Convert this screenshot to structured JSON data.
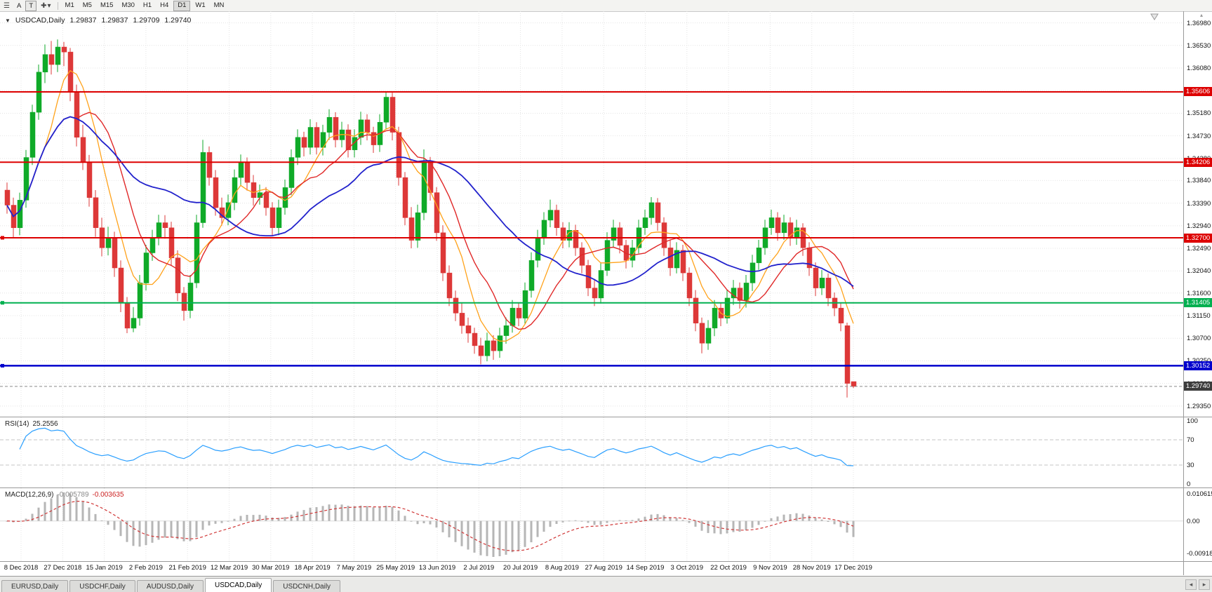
{
  "icons": {
    "charts_menu": "☰",
    "crosshair": "✚",
    "dropdown": "▾",
    "symbol_dropdown": "▼",
    "tab_scroll_left": "◂",
    "tab_scroll_right": "▸",
    "scroll_up": "▴"
  },
  "toolbar": {
    "tool_a_label": "A",
    "tool_t_label": "T",
    "timeframes": [
      "M1",
      "M5",
      "M15",
      "M30",
      "H1",
      "H4",
      "D1",
      "W1",
      "MN"
    ],
    "active_timeframe": "D1"
  },
  "header": {
    "symbol_title": "USDCAD,Daily",
    "open": "1.29837",
    "high": "1.29837",
    "low": "1.29709",
    "close": "1.29740"
  },
  "tabs": {
    "items": [
      "EURUSD,Daily",
      "USDCHF,Daily",
      "AUDUSD,Daily",
      "USDCAD,Daily",
      "USDCNH,Daily"
    ],
    "active": "USDCAD,Daily"
  },
  "chart_data": {
    "type": "candlestick",
    "symbol": "USDCAD",
    "timeframe": "Daily",
    "candle_colors": {
      "up": "#0faa28",
      "down": "#dd3838"
    },
    "price_axis": {
      "min": 1.2925,
      "max": 1.371,
      "labels": [
        "1.36980",
        "1.36530",
        "1.36080",
        "1.35630",
        "1.35180",
        "1.34730",
        "1.34280",
        "1.33840",
        "1.33390",
        "1.32940",
        "1.32490",
        "1.32040",
        "1.31600",
        "1.31150",
        "1.30700",
        "1.30250",
        "1.29800",
        "1.29350"
      ]
    },
    "date_labels": [
      "8 Dec 2018",
      "27 Dec 2018",
      "15 Jan 2019",
      "2 Feb 2019",
      "21 Feb 2019",
      "12 Mar 2019",
      "30 Mar 2019",
      "18 Apr 2019",
      "7 May 2019",
      "25 May 2019",
      "13 Jun 2019",
      "2 Jul 2019",
      "20 Jul 2019",
      "8 Aug 2019",
      "27 Aug 2019",
      "14 Sep 2019",
      "3 Oct 2019",
      "22 Oct 2019",
      "9 Nov 2019",
      "28 Nov 2019",
      "17 Dec 2019"
    ],
    "horizontal_lines": [
      {
        "price": 1.35606,
        "label": "1.35606",
        "color": "#dd0000",
        "thickness": 2,
        "left_handle": false
      },
      {
        "price": 1.34206,
        "label": "1.34206",
        "color": "#dd0000",
        "thickness": 2,
        "left_handle": false
      },
      {
        "price": 1.327,
        "label": "1.32700",
        "color": "#dd0000",
        "thickness": 2,
        "left_handle": true
      },
      {
        "price": 1.31405,
        "label": "1.31405",
        "color": "#00b050",
        "thickness": 2,
        "left_handle": true
      },
      {
        "price": 1.30152,
        "label": "1.30152",
        "color": "#0000cc",
        "thickness": 2.5,
        "left_handle": true
      }
    ],
    "current_price": {
      "value": 1.2974,
      "label": "1.29740",
      "tag_color": "#3c3c3c"
    },
    "moving_averages": [
      {
        "period": 7,
        "color": "#ffa21a",
        "width": 1.3
      },
      {
        "period": 12,
        "color": "#e02828",
        "width": 1.4
      },
      {
        "period": 28,
        "color": "#2222cc",
        "width": 1.8
      }
    ],
    "rsi": {
      "name": "RSI(14)",
      "current_value": "25.2556",
      "period": 14,
      "axis_labels": [
        100,
        70,
        30,
        0
      ],
      "levels": [
        70,
        30
      ],
      "line_color": "#2a9fff"
    },
    "macd": {
      "name": "MACD(12,26,9)",
      "main_value": "-0.005789",
      "signal_value": "-0.003635",
      "fast": 12,
      "slow": 26,
      "signal": 9,
      "axis_labels": [
        "0.010615",
        "0.00",
        "-0.009181"
      ],
      "histogram_color": "#b6b6b6",
      "signal_color": "#d03838"
    },
    "candles": [
      [
        1.3365,
        1.338,
        1.3318,
        1.3335
      ],
      [
        1.3335,
        1.335,
        1.327,
        1.329
      ],
      [
        1.329,
        1.336,
        1.3275,
        1.3345
      ],
      [
        1.3345,
        1.3445,
        1.333,
        1.343
      ],
      [
        1.343,
        1.3535,
        1.3415,
        1.352
      ],
      [
        1.352,
        1.3615,
        1.3505,
        1.36
      ],
      [
        1.36,
        1.3655,
        1.3578,
        1.3635
      ],
      [
        1.3635,
        1.3662,
        1.3595,
        1.3615
      ],
      [
        1.3615,
        1.3665,
        1.36,
        1.365
      ],
      [
        1.365,
        1.366,
        1.3612,
        1.364
      ],
      [
        1.364,
        1.3648,
        1.3542,
        1.356
      ],
      [
        1.356,
        1.3575,
        1.3452,
        1.347
      ],
      [
        1.347,
        1.3495,
        1.3405,
        1.342
      ],
      [
        1.342,
        1.3435,
        1.3332,
        1.335
      ],
      [
        1.335,
        1.3365,
        1.3272,
        1.329
      ],
      [
        1.329,
        1.331,
        1.3233,
        1.325
      ],
      [
        1.325,
        1.3292,
        1.3235,
        1.327
      ],
      [
        1.327,
        1.3282,
        1.3192,
        1.321
      ],
      [
        1.321,
        1.3225,
        1.3122,
        1.314
      ],
      [
        1.314,
        1.3152,
        1.308,
        1.309
      ],
      [
        1.309,
        1.3132,
        1.3082,
        1.311
      ],
      [
        1.311,
        1.3196,
        1.3095,
        1.318
      ],
      [
        1.318,
        1.3256,
        1.3165,
        1.324
      ],
      [
        1.324,
        1.3286,
        1.3224,
        1.327
      ],
      [
        1.327,
        1.3316,
        1.3255,
        1.33
      ],
      [
        1.33,
        1.3315,
        1.3268,
        1.329
      ],
      [
        1.329,
        1.3302,
        1.3214,
        1.323
      ],
      [
        1.323,
        1.3245,
        1.3144,
        1.316
      ],
      [
        1.316,
        1.3172,
        1.3105,
        1.3125
      ],
      [
        1.3125,
        1.3196,
        1.311,
        1.318
      ],
      [
        1.318,
        1.3316,
        1.317,
        1.33
      ],
      [
        1.33,
        1.3465,
        1.329,
        1.344
      ],
      [
        1.344,
        1.3452,
        1.3374,
        1.339
      ],
      [
        1.339,
        1.3405,
        1.3314,
        1.333
      ],
      [
        1.333,
        1.335,
        1.3294,
        1.331
      ],
      [
        1.331,
        1.3356,
        1.3295,
        1.334
      ],
      [
        1.334,
        1.3406,
        1.3325,
        1.339
      ],
      [
        1.339,
        1.3436,
        1.3374,
        1.342
      ],
      [
        1.342,
        1.343,
        1.3364,
        1.338
      ],
      [
        1.338,
        1.3395,
        1.3334,
        1.335
      ],
      [
        1.335,
        1.3376,
        1.3336,
        1.336
      ],
      [
        1.336,
        1.3371,
        1.3314,
        1.333
      ],
      [
        1.333,
        1.3341,
        1.3274,
        1.329
      ],
      [
        1.329,
        1.3346,
        1.3275,
        1.333
      ],
      [
        1.333,
        1.3386,
        1.3316,
        1.337
      ],
      [
        1.337,
        1.3446,
        1.3355,
        1.343
      ],
      [
        1.343,
        1.3486,
        1.3415,
        1.347
      ],
      [
        1.347,
        1.3481,
        1.3432,
        1.345
      ],
      [
        1.345,
        1.3506,
        1.3436,
        1.349
      ],
      [
        1.349,
        1.35,
        1.3436,
        1.345
      ],
      [
        1.345,
        1.3495,
        1.3434,
        1.348
      ],
      [
        1.348,
        1.3526,
        1.3465,
        1.351
      ],
      [
        1.351,
        1.352,
        1.345,
        1.3465
      ],
      [
        1.3465,
        1.3501,
        1.345,
        1.3485
      ],
      [
        1.3485,
        1.3496,
        1.343,
        1.3445
      ],
      [
        1.3445,
        1.3486,
        1.343,
        1.347
      ],
      [
        1.347,
        1.3521,
        1.3455,
        1.3505
      ],
      [
        1.3505,
        1.3516,
        1.3464,
        1.348
      ],
      [
        1.348,
        1.3491,
        1.3439,
        1.3455
      ],
      [
        1.3455,
        1.3516,
        1.3441,
        1.35
      ],
      [
        1.35,
        1.356,
        1.3486,
        1.355
      ],
      [
        1.355,
        1.3559,
        1.3464,
        1.348
      ],
      [
        1.348,
        1.3491,
        1.3374,
        1.339
      ],
      [
        1.339,
        1.3401,
        1.3295,
        1.331
      ],
      [
        1.331,
        1.3331,
        1.3249,
        1.3265
      ],
      [
        1.3265,
        1.3336,
        1.325,
        1.332
      ],
      [
        1.332,
        1.3446,
        1.3305,
        1.342
      ],
      [
        1.342,
        1.3431,
        1.3344,
        1.336
      ],
      [
        1.336,
        1.3371,
        1.3264,
        1.328
      ],
      [
        1.328,
        1.3295,
        1.3184,
        1.32
      ],
      [
        1.32,
        1.3215,
        1.3134,
        1.315
      ],
      [
        1.315,
        1.3165,
        1.3104,
        1.312
      ],
      [
        1.312,
        1.3141,
        1.3079,
        1.3095
      ],
      [
        1.3095,
        1.3111,
        1.3061,
        1.308
      ],
      [
        1.308,
        1.3091,
        1.3039,
        1.3055
      ],
      [
        1.3055,
        1.3071,
        1.3018,
        1.3035
      ],
      [
        1.3035,
        1.3081,
        1.3024,
        1.3065
      ],
      [
        1.3065,
        1.3076,
        1.3027,
        1.3045
      ],
      [
        1.3045,
        1.3091,
        1.3031,
        1.3075
      ],
      [
        1.3075,
        1.3111,
        1.3059,
        1.3095
      ],
      [
        1.3095,
        1.3146,
        1.3081,
        1.313
      ],
      [
        1.313,
        1.3141,
        1.3094,
        1.311
      ],
      [
        1.311,
        1.3181,
        1.3099,
        1.3165
      ],
      [
        1.3165,
        1.3241,
        1.3151,
        1.3225
      ],
      [
        1.3225,
        1.3286,
        1.3211,
        1.327
      ],
      [
        1.327,
        1.3321,
        1.3256,
        1.3305
      ],
      [
        1.3305,
        1.3346,
        1.3291,
        1.3325
      ],
      [
        1.3325,
        1.3336,
        1.3274,
        1.329
      ],
      [
        1.329,
        1.3301,
        1.3249,
        1.3265
      ],
      [
        1.3265,
        1.3301,
        1.3251,
        1.3285
      ],
      [
        1.3285,
        1.3296,
        1.3234,
        1.325
      ],
      [
        1.325,
        1.3261,
        1.3199,
        1.3215
      ],
      [
        1.3215,
        1.3226,
        1.3154,
        1.317
      ],
      [
        1.317,
        1.3186,
        1.3134,
        1.315
      ],
      [
        1.315,
        1.3221,
        1.3139,
        1.3205
      ],
      [
        1.3205,
        1.3281,
        1.3194,
        1.3265
      ],
      [
        1.3265,
        1.3306,
        1.3251,
        1.329
      ],
      [
        1.329,
        1.3301,
        1.3239,
        1.3255
      ],
      [
        1.3255,
        1.3266,
        1.3209,
        1.3225
      ],
      [
        1.3225,
        1.3266,
        1.3211,
        1.325
      ],
      [
        1.325,
        1.3306,
        1.3239,
        1.329
      ],
      [
        1.329,
        1.3326,
        1.3276,
        1.331
      ],
      [
        1.331,
        1.3351,
        1.3296,
        1.334
      ],
      [
        1.334,
        1.3349,
        1.3284,
        1.33
      ],
      [
        1.33,
        1.3311,
        1.3234,
        1.325
      ],
      [
        1.325,
        1.3266,
        1.3194,
        1.321
      ],
      [
        1.321,
        1.3261,
        1.3199,
        1.3245
      ],
      [
        1.3245,
        1.3256,
        1.3184,
        1.32
      ],
      [
        1.32,
        1.3211,
        1.3134,
        1.315
      ],
      [
        1.315,
        1.3166,
        1.3084,
        1.31
      ],
      [
        1.31,
        1.3111,
        1.304,
        1.306
      ],
      [
        1.306,
        1.3106,
        1.3047,
        1.309
      ],
      [
        1.309,
        1.3146,
        1.3074,
        1.313
      ],
      [
        1.313,
        1.3141,
        1.3094,
        1.311
      ],
      [
        1.311,
        1.3166,
        1.3099,
        1.315
      ],
      [
        1.315,
        1.3186,
        1.3136,
        1.317
      ],
      [
        1.317,
        1.3181,
        1.3129,
        1.3145
      ],
      [
        1.3145,
        1.3196,
        1.3131,
        1.318
      ],
      [
        1.318,
        1.3236,
        1.3164,
        1.322
      ],
      [
        1.322,
        1.3266,
        1.3206,
        1.325
      ],
      [
        1.325,
        1.3306,
        1.3236,
        1.329
      ],
      [
        1.329,
        1.3326,
        1.3276,
        1.331
      ],
      [
        1.331,
        1.3321,
        1.3264,
        1.328
      ],
      [
        1.328,
        1.3316,
        1.3266,
        1.33
      ],
      [
        1.33,
        1.3311,
        1.3254,
        1.327
      ],
      [
        1.327,
        1.3306,
        1.3256,
        1.329
      ],
      [
        1.329,
        1.3299,
        1.3234,
        1.325
      ],
      [
        1.325,
        1.3261,
        1.3194,
        1.321
      ],
      [
        1.321,
        1.3221,
        1.3154,
        1.317
      ],
      [
        1.317,
        1.3206,
        1.3156,
        1.319
      ],
      [
        1.319,
        1.3199,
        1.3134,
        1.315
      ],
      [
        1.315,
        1.3161,
        1.3114,
        1.313
      ],
      [
        1.313,
        1.3141,
        1.3084,
        1.31
      ],
      [
        1.3095,
        1.3101,
        1.2952,
        1.298
      ],
      [
        1.29837,
        1.29837,
        1.29709,
        1.2974
      ]
    ]
  }
}
